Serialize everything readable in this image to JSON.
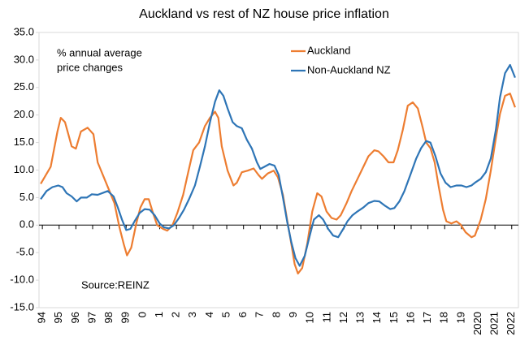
{
  "chart_data": {
    "type": "line",
    "title": "Auckland vs rest of NZ house price inflation",
    "annotations": [
      "% annual average",
      "price changes",
      "Source:REINZ"
    ],
    "xlim": [
      1993.8,
      2022.4
    ],
    "ylim": [
      -15,
      35
    ],
    "yticks": [
      {
        "value": 35,
        "label": "35.0"
      },
      {
        "value": 30,
        "label": "30.0"
      },
      {
        "value": 25,
        "label": "25.0"
      },
      {
        "value": 20,
        "label": "20.0"
      },
      {
        "value": 15,
        "label": "15.0"
      },
      {
        "value": 10,
        "label": "10.0"
      },
      {
        "value": 5,
        "label": "5.0"
      },
      {
        "value": 0,
        "label": "0.0"
      },
      {
        "value": -5,
        "label": "-5.0"
      },
      {
        "value": -10,
        "label": "-10.0"
      },
      {
        "value": -15,
        "label": "-15.0"
      }
    ],
    "xticks": [
      {
        "value": 1994,
        "label": "94"
      },
      {
        "value": 1995,
        "label": "95"
      },
      {
        "value": 1996,
        "label": "96"
      },
      {
        "value": 1997,
        "label": "97"
      },
      {
        "value": 1998,
        "label": "98"
      },
      {
        "value": 1999,
        "label": "99"
      },
      {
        "value": 2000,
        "label": "0"
      },
      {
        "value": 2001,
        "label": "1"
      },
      {
        "value": 2002,
        "label": "2"
      },
      {
        "value": 2003,
        "label": "3"
      },
      {
        "value": 2004,
        "label": "4"
      },
      {
        "value": 2005,
        "label": "5"
      },
      {
        "value": 2006,
        "label": "6"
      },
      {
        "value": 2007,
        "label": "7"
      },
      {
        "value": 2008,
        "label": "8"
      },
      {
        "value": 2009,
        "label": "9"
      },
      {
        "value": 2010,
        "label": "10"
      },
      {
        "value": 2011,
        "label": "11"
      },
      {
        "value": 2012,
        "label": "12"
      },
      {
        "value": 2013,
        "label": "13"
      },
      {
        "value": 2014,
        "label": "14"
      },
      {
        "value": 2015,
        "label": "15"
      },
      {
        "value": 2016,
        "label": "16"
      },
      {
        "value": 2017,
        "label": "17"
      },
      {
        "value": 2018,
        "label": "18"
      },
      {
        "value": 2019,
        "label": "19"
      },
      2020,
      2021,
      2022
    ],
    "legend": "top-right",
    "series": [
      {
        "name": "Auckland",
        "color": "#ed7d31",
        "x": [
          1993.9,
          1994.5,
          1994.9,
          1995.1,
          1995.35,
          1995.75,
          1996.0,
          1996.3,
          1996.7,
          1997.05,
          1997.3,
          1997.8,
          1998.3,
          1998.6,
          1998.85,
          1999.05,
          1999.3,
          1999.6,
          1999.85,
          2000.1,
          2000.35,
          2000.6,
          2000.85,
          2001.2,
          2001.45,
          2001.75,
          2002.05,
          2002.4,
          2002.7,
          2003.0,
          2003.35,
          2003.7,
          2004.0,
          2004.3,
          2004.5,
          2004.7,
          2005.05,
          2005.4,
          2005.6,
          2005.9,
          2006.25,
          2006.6,
          2006.9,
          2007.1,
          2007.45,
          2007.8,
          2008.05,
          2008.35,
          2008.6,
          2008.85,
          2009.05,
          2009.25,
          2009.5,
          2009.8,
          2010.1,
          2010.4,
          2010.65,
          2010.95,
          2011.25,
          2011.55,
          2011.8,
          2012.15,
          2012.45,
          2012.8,
          2013.15,
          2013.45,
          2013.8,
          2014.05,
          2014.35,
          2014.65,
          2014.95,
          2015.2,
          2015.5,
          2015.8,
          2016.1,
          2016.4,
          2016.7,
          2016.9,
          2017.15,
          2017.4,
          2017.65,
          2017.9,
          2018.1,
          2018.4,
          2018.7,
          2018.95,
          2019.25,
          2019.6,
          2019.8,
          2020.15,
          2020.45,
          2020.75,
          2021.05,
          2021.3,
          2021.6,
          2021.9,
          2022.2
        ],
        "values": [
          7.5,
          10.6,
          17,
          19.5,
          18.7,
          14.3,
          13.9,
          17,
          17.7,
          16.5,
          11.4,
          7.7,
          4,
          -0.4,
          -3.4,
          -5.5,
          -4.1,
          0.3,
          3.2,
          4.7,
          4.7,
          2.2,
          0,
          -0.7,
          -1,
          -0.1,
          2.2,
          5.5,
          9.6,
          13.6,
          15,
          18,
          19.5,
          20.6,
          19.5,
          14.3,
          9.9,
          7.2,
          7.7,
          9.6,
          9.9,
          10.3,
          9.1,
          8.4,
          9.4,
          9.9,
          8.7,
          5.5,
          1,
          -3.4,
          -7.1,
          -8.8,
          -7.8,
          -3.4,
          2.5,
          5.8,
          5.2,
          2.5,
          1.3,
          1,
          1.8,
          4,
          6.2,
          8.4,
          10.6,
          12.5,
          13.6,
          13.4,
          12.5,
          11.4,
          11.4,
          13.6,
          17.3,
          21.7,
          22.3,
          21.2,
          17.6,
          15,
          14,
          11.4,
          6.9,
          2.8,
          0.7,
          0.3,
          0.7,
          0.1,
          -1.3,
          -2.2,
          -1.9,
          1,
          4.7,
          9.9,
          15.8,
          20.2,
          23.5,
          23.9,
          21.4
        ]
      },
      {
        "name": "Non-Auckland NZ",
        "color": "#2e75b6",
        "x": [
          1993.9,
          1994.25,
          1994.6,
          1994.95,
          1995.2,
          1995.45,
          1995.75,
          1996.05,
          1996.3,
          1996.65,
          1996.95,
          1997.3,
          1997.65,
          1997.9,
          1998.25,
          1998.5,
          1998.75,
          1999.0,
          1999.25,
          1999.5,
          1999.8,
          2000.1,
          2000.4,
          2000.7,
          2001.0,
          2001.25,
          2001.55,
          2001.85,
          2002.15,
          2002.45,
          2002.75,
          2003.1,
          2003.4,
          2003.7,
          2004.0,
          2004.3,
          2004.55,
          2004.8,
          2005.05,
          2005.35,
          2005.6,
          2005.9,
          2006.2,
          2006.5,
          2006.8,
          2007.0,
          2007.25,
          2007.55,
          2007.85,
          2008.1,
          2008.35,
          2008.6,
          2008.85,
          2009.1,
          2009.35,
          2009.65,
          2009.95,
          2010.2,
          2010.5,
          2010.75,
          2011.05,
          2011.35,
          2011.65,
          2011.95,
          2012.2,
          2012.5,
          2012.8,
          2013.15,
          2013.45,
          2013.8,
          2014.1,
          2014.45,
          2014.75,
          2015.0,
          2015.3,
          2015.6,
          2015.95,
          2016.3,
          2016.6,
          2016.9,
          2017.15,
          2017.45,
          2017.75,
          2018.05,
          2018.35,
          2018.7,
          2019.0,
          2019.3,
          2019.6,
          2019.85,
          2020.15,
          2020.45,
          2020.75,
          2021.05,
          2021.3,
          2021.6,
          2021.9,
          2022.2
        ],
        "values": [
          4.7,
          6.2,
          6.9,
          7.2,
          6.9,
          5.8,
          5.2,
          4.3,
          5,
          5,
          5.6,
          5.5,
          5.9,
          6.2,
          5.2,
          3.2,
          1,
          -0.9,
          -0.7,
          0.7,
          2.2,
          2.9,
          2.8,
          1.8,
          0.3,
          -0.4,
          -0.6,
          0,
          1.3,
          2.8,
          4.7,
          7.2,
          10.6,
          14.3,
          18.7,
          22.4,
          24.5,
          23.5,
          21.2,
          18.7,
          18,
          17.6,
          15.5,
          13.9,
          11.4,
          10.2,
          10.6,
          11.1,
          10.8,
          9.1,
          5,
          0.7,
          -3.1,
          -6,
          -7.4,
          -5.6,
          -1.9,
          1,
          1.8,
          1,
          -0.7,
          -1.9,
          -2.2,
          -0.7,
          0.7,
          1.8,
          2.5,
          3.2,
          4,
          4.4,
          4.3,
          3.5,
          2.9,
          3.1,
          4.3,
          6.2,
          9.1,
          12.1,
          14,
          15.3,
          15,
          12.5,
          9.4,
          7.7,
          6.9,
          7.2,
          7.2,
          6.9,
          7.2,
          7.8,
          8.4,
          9.6,
          12.1,
          17.3,
          23.2,
          27.6,
          29.1,
          26.8
        ]
      }
    ]
  }
}
